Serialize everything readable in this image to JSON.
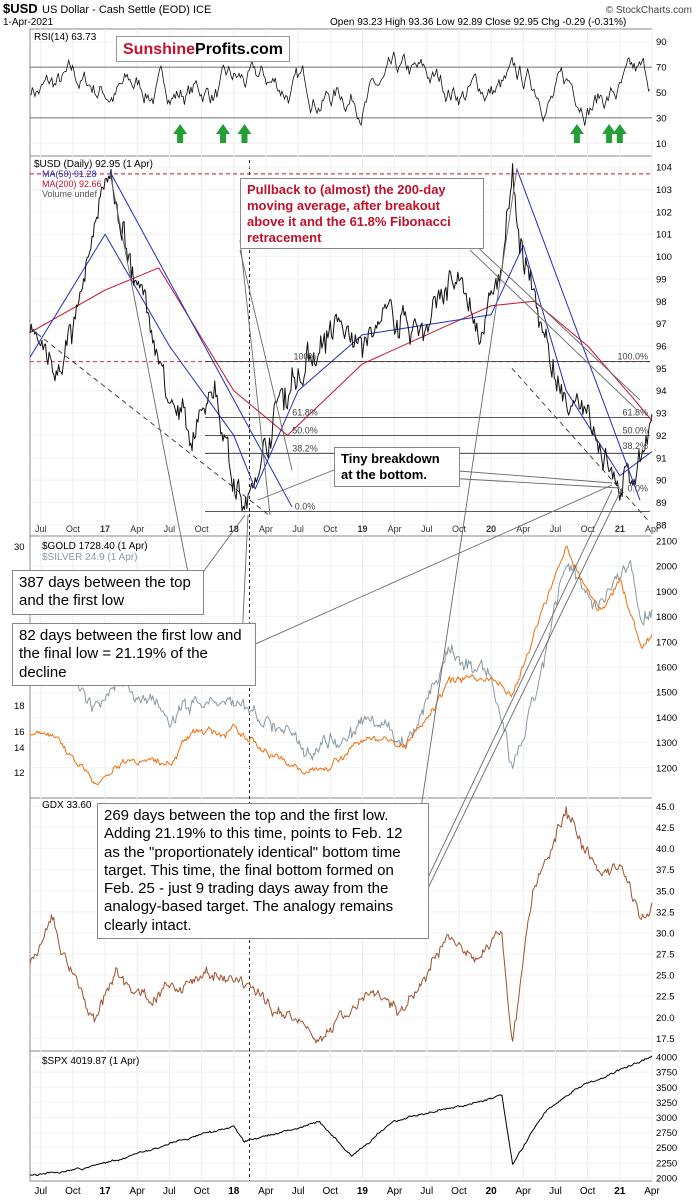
{
  "header": {
    "symbol": "$USD",
    "name": "US Dollar - Cash Settle (EOD)",
    "exchange": "ICE",
    "date": "1-Apr-2021",
    "ohlc": "Open 93.23  High 93.36  Low 92.89  Close 92.95  Chg -0.29 (-0.31%)",
    "watermark": "© StockCharts.com"
  },
  "logo": {
    "part1": "Sunshine",
    "part2": "Profits.com"
  },
  "annotations": {
    "pullback": "Pullback to (almost) the 200-day moving average, after breakout above it and the 61.8% Fibonacci retracement",
    "tiny_breakdown": "Tiny breakdown at the bottom.",
    "days387": "387 days between the top and the first low",
    "days82": "82 days between the first low and the final low = 21.19% of the decline",
    "days269": "269 days between the top and the first low. Adding 21.19% to this time, points to Feb. 12 as the \"proportionately identical\" bottom time target. This time, the final bottom formed on Feb. 25 - just 9 trading days away from the analogy-based target. The analogy remains clearly intact."
  },
  "colors": {
    "usd": "#111111",
    "ma50": "#1f2fbf",
    "ma200": "#c8102e",
    "gold": "#f07010",
    "silver": "#8a9aa4",
    "gdx": "#a0522d",
    "spx": "#000000",
    "annotation_red": "#c0102a",
    "arrow_up": "#22a036"
  },
  "chart_data": [
    {
      "panel": "rsi",
      "type": "line",
      "legend": "RSI(14) 63.73",
      "y_ticks": [
        10,
        30,
        50,
        70,
        90
      ],
      "ylim": [
        0,
        100
      ],
      "reference_lines": [
        30,
        70
      ],
      "buy_signal_arrows": [
        "Aug 17",
        "Dec 17",
        "Feb 18",
        "Sep 20",
        "Dec 20",
        "Jan 21"
      ]
    },
    {
      "panel": "usd",
      "type": "line",
      "legend": [
        "$USD (Daily) 92.95 (1 Apr)",
        "MA(50) 91.28",
        "MA(200) 92.66",
        "Volume undef"
      ],
      "y_ticks": [
        88,
        89,
        90,
        91,
        92,
        93,
        94,
        95,
        96,
        97,
        98,
        99,
        100,
        101,
        102,
        103,
        104
      ],
      "ylim": [
        87.5,
        104.5
      ],
      "series": [
        {
          "name": "$USD",
          "points": [
            [
              "Jun 16",
              96.2
            ],
            [
              "Sep 16",
              95.3
            ],
            [
              "Nov 16",
              98.8
            ],
            [
              "Jan 17",
              103.8
            ],
            [
              "Mar 17",
              100.5
            ],
            [
              "May 17",
              97.5
            ],
            [
              "Jul 17",
              94.0
            ],
            [
              "Sep 17",
              91.2
            ],
            [
              "Nov 17",
              94.5
            ],
            [
              "Jan 18",
              90.5
            ],
            [
              "Feb 18",
              88.6
            ],
            [
              "Mar 18",
              89.7
            ],
            [
              "May 18",
              93.5
            ],
            [
              "Jul 18",
              94.8
            ],
            [
              "Oct 18",
              96.8
            ],
            [
              "Jan 19",
              96.0
            ],
            [
              "Apr 19",
              97.3
            ],
            [
              "Jul 19",
              96.8
            ],
            [
              "Sep 19",
              99.0
            ],
            [
              "Dec 19",
              96.7
            ],
            [
              "Feb 20",
              99.3
            ],
            [
              "Mar 20",
              103.4
            ],
            [
              "Apr 20",
              99.8
            ],
            [
              "Jun 20",
              96.6
            ],
            [
              "Aug 20",
              92.6
            ],
            [
              "Oct 20",
              93.3
            ],
            [
              "Jan 21",
              89.5
            ],
            [
              "Feb 21",
              90.0
            ],
            [
              "Apr 21",
              92.95
            ]
          ]
        },
        {
          "name": "MA(50)",
          "points": [
            [
              "Jun 16",
              95.5
            ],
            [
              "Jan 17",
              101.0
            ],
            [
              "Jul 17",
              96.0
            ],
            [
              "Jan 18",
              92.0
            ],
            [
              "Mar 18",
              89.6
            ],
            [
              "Jul 18",
              94.0
            ],
            [
              "Jan 19",
              96.5
            ],
            [
              "Jan 20",
              97.4
            ],
            [
              "Apr 20",
              100.5
            ],
            [
              "Aug 20",
              94.0
            ],
            [
              "Jan 21",
              90.2
            ],
            [
              "Apr 21",
              91.28
            ]
          ]
        },
        {
          "name": "MA(200)",
          "points": [
            [
              "Jun 16",
              96.6
            ],
            [
              "Jan 17",
              98.5
            ],
            [
              "Jun 17",
              99.5
            ],
            [
              "Jan 18",
              94.0
            ],
            [
              "Jun 18",
              92.0
            ],
            [
              "Jan 19",
              95.2
            ],
            [
              "Jan 20",
              97.8
            ],
            [
              "May 20",
              98.0
            ],
            [
              "Oct 20",
              96.0
            ],
            [
              "Feb 21",
              93.8
            ],
            [
              "Apr 21",
              92.66
            ]
          ]
        }
      ],
      "fibonacci_labels": [
        "100%",
        "61.8%",
        "50.0%",
        "38.2%",
        "0.0%"
      ],
      "fibonacci_labels_2020": [
        "100.0%",
        "61.8%",
        "50.0%",
        "38.2%",
        "0.0%"
      ]
    },
    {
      "panel": "gold",
      "type": "line",
      "legend": [
        "$GOLD 1728.40 (1 Apr)",
        "$SILVER 24.9 (1 Apr)"
      ],
      "y_ticks": [
        1200,
        1300,
        1400,
        1500,
        1600,
        1700,
        1800,
        1900,
        2000,
        2100
      ],
      "left_ticks": [
        12,
        14,
        16,
        18,
        30
      ],
      "ylim": [
        1080,
        2120
      ],
      "series": [
        {
          "name": "$GOLD",
          "points": [
            [
              "Jun 16",
              1330
            ],
            [
              "Aug 16",
              1340
            ],
            [
              "Dec 16",
              1140
            ],
            [
              "Mar 17",
              1240
            ],
            [
              "Jul 17",
              1220
            ],
            [
              "Sep 17",
              1340
            ],
            [
              "Jan 18",
              1345
            ],
            [
              "Aug 18",
              1175
            ],
            [
              "Feb 19",
              1330
            ],
            [
              "May 19",
              1280
            ],
            [
              "Sep 19",
              1540
            ],
            [
              "Jan 20",
              1560
            ],
            [
              "Mar 20",
              1480
            ],
            [
              "May 20",
              1730
            ],
            [
              "Aug 20",
              2070
            ],
            [
              "Nov 20",
              1810
            ],
            [
              "Jan 21",
              1950
            ],
            [
              "Mar 21",
              1680
            ],
            [
              "Apr 21",
              1728.4
            ]
          ]
        },
        {
          "name": "$SILVER",
          "points": [
            [
              "Jun 16",
              1570
            ],
            [
              "Aug 16",
              1650
            ],
            [
              "Dec 16",
              1420
            ],
            [
              "Mar 17",
              1530
            ],
            [
              "Jul 17",
              1380
            ],
            [
              "Sep 17",
              1460
            ],
            [
              "Jan 18",
              1450
            ],
            [
              "Aug 18",
              1290
            ],
            [
              "Feb 19",
              1380
            ],
            [
              "May 19",
              1300
            ],
            [
              "Sep 19",
              1660
            ],
            [
              "Jan 20",
              1560
            ],
            [
              "Mar 20",
              1170
            ],
            [
              "May 20",
              1450
            ],
            [
              "Aug 20",
              2000
            ],
            [
              "Nov 20",
              1860
            ],
            [
              "Feb 21",
              2020
            ],
            [
              "Mar 21",
              1780
            ],
            [
              "Apr 21",
              1830
            ]
          ]
        }
      ]
    },
    {
      "panel": "gdx",
      "type": "line",
      "legend": "GDX 33.60",
      "y_ticks": [
        17.5,
        20.0,
        22.5,
        25.0,
        27.5,
        30.0,
        32.5,
        35.0,
        37.5,
        40.0,
        42.5,
        45.0
      ],
      "ylim": [
        16,
        46
      ],
      "series": [
        {
          "name": "GDX",
          "points": [
            [
              "Jun 16",
              26.0
            ],
            [
              "Aug 16",
              31.0
            ],
            [
              "Dec 16",
              19.5
            ],
            [
              "Feb 17",
              25.5
            ],
            [
              "May 17",
              22.0
            ],
            [
              "Sep 17",
              25.0
            ],
            [
              "Jan 18",
              24.0
            ],
            [
              "Sep 18",
              18.0
            ],
            [
              "Feb 19",
              22.5
            ],
            [
              "May 19",
              20.5
            ],
            [
              "Sep 19",
              29.5
            ],
            [
              "Dec 19",
              27.0
            ],
            [
              "Feb 20",
              30.0
            ],
            [
              "Mar 20",
              17.0
            ],
            [
              "May 20",
              35.0
            ],
            [
              "Aug 20",
              44.5
            ],
            [
              "Nov 20",
              37.0
            ],
            [
              "Jan 21",
              38.0
            ],
            [
              "Mar 21",
              31.5
            ],
            [
              "Apr 21",
              33.6
            ]
          ]
        }
      ]
    },
    {
      "panel": "spx",
      "type": "line",
      "legend": "$SPX 4019.87 (1 Apr)",
      "y_ticks": [
        2000,
        2250,
        2500,
        2750,
        3000,
        3250,
        3500,
        3750,
        4000
      ],
      "ylim": [
        1950,
        4100
      ],
      "series": [
        {
          "name": "$SPX",
          "points": [
            [
              "Jun 16",
              2050
            ],
            [
              "Nov 16",
              2150
            ],
            [
              "Jan 18",
              2870
            ],
            [
              "Feb 18",
              2600
            ],
            [
              "Sep 18",
              2930
            ],
            [
              "Dec 18",
              2350
            ],
            [
              "Apr 19",
              2940
            ],
            [
              "Jan 20",
              3300
            ],
            [
              "Feb 20",
              3380
            ],
            [
              "Mar 20",
              2240
            ],
            [
              "Jun 20",
              3100
            ],
            [
              "Sep 20",
              3500
            ],
            [
              "Dec 20",
              3700
            ],
            [
              "Apr 21",
              4019.87
            ]
          ]
        }
      ]
    }
  ],
  "x_axis_labels": [
    "Jul",
    "Oct",
    "17",
    "Apr",
    "Jul",
    "Oct",
    "18",
    "Apr",
    "Jul",
    "Oct",
    "19",
    "Apr",
    "Jul",
    "Oct",
    "20",
    "Apr",
    "Jul",
    "Oct",
    "21",
    "Apr"
  ]
}
